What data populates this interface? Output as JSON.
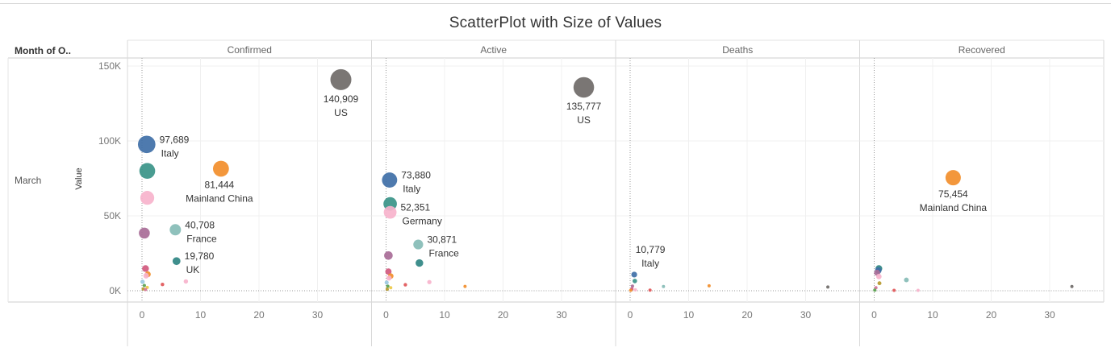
{
  "chart_data": {
    "type": "scatter",
    "title": "ScatterPlot with Size of Values",
    "row_header": "Month of O..",
    "row_value": "March",
    "ylabel": "Value",
    "ylim": [
      0,
      155000
    ],
    "xlim": [
      -2,
      37
    ],
    "y_ticks": [
      "0K",
      "50K",
      "100K",
      "150K"
    ],
    "x_ticks": [
      "0",
      "10",
      "20",
      "30"
    ],
    "panels": [
      {
        "name": "Confirmed",
        "points": [
          {
            "x": 34,
            "y": 140909,
            "size": 140909,
            "color": "#6f6a68",
            "value_label": "140,909",
            "country": "US"
          },
          {
            "x": 0.8,
            "y": 97689,
            "size": 97689,
            "color": "#3f6fa7",
            "value_label": "97,689",
            "country": "Italy"
          },
          {
            "x": 13.5,
            "y": 81444,
            "size": 81444,
            "color": "#f28e2b",
            "value_label": "81,444",
            "country": "Mainland China"
          },
          {
            "x": 0.9,
            "y": 80000,
            "size": 80000,
            "color": "#3a9488"
          },
          {
            "x": 0.9,
            "y": 62000,
            "size": 62000,
            "color": "#f7b3cc"
          },
          {
            "x": 5.7,
            "y": 40708,
            "size": 40708,
            "color": "#86bcb6",
            "value_label": "40,708",
            "country": "France"
          },
          {
            "x": 0.4,
            "y": 38500,
            "size": 38500,
            "color": "#a86c97"
          },
          {
            "x": 5.9,
            "y": 19780,
            "size": 19780,
            "color": "#2f8583",
            "value_label": "19,780",
            "country": "UK"
          },
          {
            "x": 0.6,
            "y": 14800,
            "size": 14800,
            "color": "#d1597e"
          },
          {
            "x": 1.0,
            "y": 11000,
            "size": 11000,
            "color": "#f28e2b"
          },
          {
            "x": 0.7,
            "y": 10000,
            "size": 10000,
            "color": "#f7b3cc"
          },
          {
            "x": 3.5,
            "y": 4200,
            "size": 4200,
            "color": "#e15759"
          },
          {
            "x": 7.5,
            "y": 6200,
            "size": 6200,
            "color": "#f7b3cc"
          },
          {
            "x": 0.1,
            "y": 6000,
            "size": 6000,
            "color": "#9cc9e2"
          },
          {
            "x": 0.4,
            "y": 3500,
            "size": 3500,
            "color": "#59a14f"
          },
          {
            "x": 0.9,
            "y": 2200,
            "size": 2200,
            "color": "#edc948"
          },
          {
            "x": 0.2,
            "y": 1200,
            "size": 1200,
            "color": "#b6992d"
          },
          {
            "x": 0.6,
            "y": 800,
            "size": 800,
            "color": "#d37295"
          }
        ]
      },
      {
        "name": "Active",
        "points": [
          {
            "x": 33.8,
            "y": 135777,
            "size": 135777,
            "color": "#6f6a68",
            "value_label": "135,777",
            "country": "US"
          },
          {
            "x": 0.6,
            "y": 73880,
            "size": 73880,
            "color": "#3f6fa7",
            "value_label": "73,880",
            "country": "Italy"
          },
          {
            "x": 0.7,
            "y": 58000,
            "size": 58000,
            "color": "#3a9488"
          },
          {
            "x": 0.7,
            "y": 52351,
            "size": 52351,
            "color": "#f7b3cc",
            "value_label": "52,351",
            "country": "Germany"
          },
          {
            "x": 5.5,
            "y": 30871,
            "size": 30871,
            "color": "#86bcb6",
            "value_label": "30,871",
            "country": "France"
          },
          {
            "x": 0.4,
            "y": 23500,
            "size": 23500,
            "color": "#a86c97"
          },
          {
            "x": 5.7,
            "y": 18500,
            "size": 18500,
            "color": "#2f8583"
          },
          {
            "x": 0.4,
            "y": 12800,
            "size": 12800,
            "color": "#d1597e"
          },
          {
            "x": 0.8,
            "y": 9800,
            "size": 9800,
            "color": "#f28e2b"
          },
          {
            "x": 0.5,
            "y": 8500,
            "size": 8500,
            "color": "#f7b3cc"
          },
          {
            "x": 3.3,
            "y": 4000,
            "size": 4000,
            "color": "#e15759"
          },
          {
            "x": 7.4,
            "y": 5800,
            "size": 5800,
            "color": "#f7b3cc"
          },
          {
            "x": 13.5,
            "y": 2900,
            "size": 2900,
            "color": "#f28e2b"
          },
          {
            "x": 0.1,
            "y": 5500,
            "size": 5500,
            "color": "#9cc9e2"
          },
          {
            "x": 0.3,
            "y": 3000,
            "size": 3000,
            "color": "#59a14f"
          },
          {
            "x": 0.8,
            "y": 2000,
            "size": 2000,
            "color": "#edc948"
          },
          {
            "x": 0.2,
            "y": 1000,
            "size": 1000,
            "color": "#b6992d"
          }
        ]
      },
      {
        "name": "Deaths",
        "points": [
          {
            "x": 0.7,
            "y": 10779,
            "size": 10779,
            "color": "#3f6fa7",
            "value_label": "10,779",
            "country": "Italy"
          },
          {
            "x": 0.8,
            "y": 6500,
            "size": 6500,
            "color": "#3a9488"
          },
          {
            "x": 5.7,
            "y": 2800,
            "size": 2800,
            "color": "#86bcb6"
          },
          {
            "x": 13.5,
            "y": 3300,
            "size": 3300,
            "color": "#f28e2b"
          },
          {
            "x": 33.8,
            "y": 2500,
            "size": 2500,
            "color": "#6f6a68"
          },
          {
            "x": 0.4,
            "y": 3100,
            "size": 3100,
            "color": "#a86c97"
          },
          {
            "x": 0.3,
            "y": 1200,
            "size": 1200,
            "color": "#d1597e"
          },
          {
            "x": 0.9,
            "y": 600,
            "size": 600,
            "color": "#f7b3cc"
          },
          {
            "x": 3.4,
            "y": 400,
            "size": 400,
            "color": "#e15759"
          },
          {
            "x": 0.1,
            "y": 300,
            "size": 300,
            "color": "#f28e2b"
          }
        ]
      },
      {
        "name": "Recovered",
        "points": [
          {
            "x": 13.5,
            "y": 75454,
            "size": 75454,
            "color": "#f28e2b",
            "value_label": "75,454",
            "country": "Mainland China"
          },
          {
            "x": 0.8,
            "y": 14800,
            "size": 14800,
            "color": "#2f8583"
          },
          {
            "x": 0.7,
            "y": 13500,
            "size": 13500,
            "color": "#3f6fa7"
          },
          {
            "x": 0.5,
            "y": 12000,
            "size": 12000,
            "color": "#a86c97"
          },
          {
            "x": 0.8,
            "y": 9500,
            "size": 9500,
            "color": "#f7b3cc"
          },
          {
            "x": 5.5,
            "y": 7200,
            "size": 7200,
            "color": "#86bcb6"
          },
          {
            "x": 0.9,
            "y": 5000,
            "size": 5000,
            "color": "#b6992d"
          },
          {
            "x": 33.8,
            "y": 2800,
            "size": 2800,
            "color": "#6f6a68"
          },
          {
            "x": 0.3,
            "y": 2000,
            "size": 2000,
            "color": "#d37295"
          },
          {
            "x": 3.4,
            "y": 300,
            "size": 300,
            "color": "#e15759"
          },
          {
            "x": 7.5,
            "y": 300,
            "size": 300,
            "color": "#f7b3cc"
          },
          {
            "x": 0.1,
            "y": 400,
            "size": 400,
            "color": "#59a14f"
          }
        ]
      }
    ]
  }
}
